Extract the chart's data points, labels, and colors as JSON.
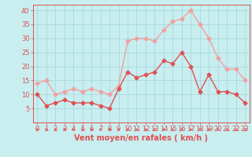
{
  "hours": [
    0,
    1,
    2,
    3,
    4,
    5,
    6,
    7,
    8,
    9,
    10,
    11,
    12,
    13,
    14,
    15,
    16,
    17,
    18,
    19,
    20,
    21,
    22,
    23
  ],
  "wind_avg": [
    10,
    6,
    7,
    8,
    7,
    7,
    7,
    6,
    5,
    12,
    18,
    16,
    17,
    18,
    22,
    21,
    25,
    20,
    11,
    17,
    11,
    11,
    10,
    7
  ],
  "wind_gust": [
    14,
    15,
    10,
    11,
    12,
    11,
    12,
    11,
    10,
    13,
    29,
    30,
    30,
    29,
    33,
    36,
    37,
    40,
    35,
    30,
    23,
    19,
    19,
    15
  ],
  "avg_color": "#e05050",
  "gust_color": "#f0a0a0",
  "background_color": "#c8eef0",
  "grid_color": "#aad8dc",
  "xlabel": "Vent moyen/en rafales ( km/h )",
  "ylim": [
    0,
    42
  ],
  "xlim": [
    -0.5,
    23.5
  ],
  "yticks": [
    5,
    10,
    15,
    20,
    25,
    30,
    35,
    40
  ],
  "xticks": [
    0,
    1,
    2,
    3,
    4,
    5,
    6,
    7,
    8,
    9,
    10,
    11,
    12,
    13,
    14,
    15,
    16,
    17,
    18,
    19,
    20,
    21,
    22,
    23
  ],
  "tick_fontsize": 6,
  "xlabel_fontsize": 7,
  "marker": "D",
  "markersize": 2.5,
  "linewidth": 1.0
}
